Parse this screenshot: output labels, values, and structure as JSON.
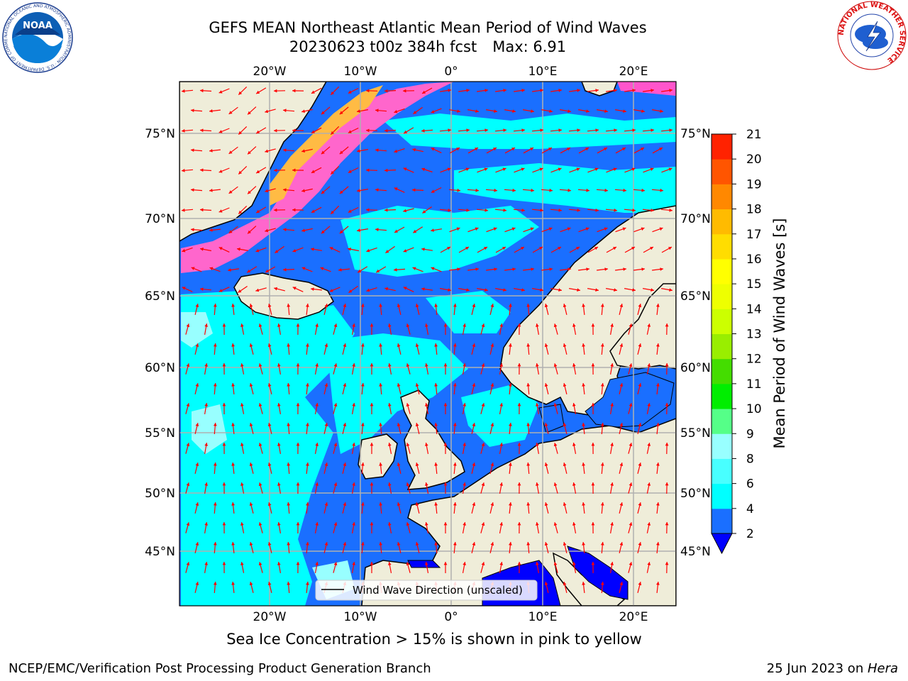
{
  "header": {
    "title_line1": "GEFS MEAN Northeast Atlantic Mean Period of Wind Waves",
    "title_line2_date": "20230623 t00z 384h fcst",
    "title_line2_max": "Max: 6.91"
  },
  "logos": {
    "noaa_text": "NOAA",
    "noaa_ring": "NATIONAL OCEANIC AND ATMOSPHERIC ADMINISTRATION · U.S. DEPARTMENT OF COMMERCE",
    "nws_ring": "NATIONAL WEATHER SERVICE"
  },
  "map": {
    "lon_ticks": [
      "20°W",
      "10°W",
      "0°",
      "10°E",
      "20°E"
    ],
    "lat_ticks": [
      "75°N",
      "70°N",
      "65°N",
      "60°N",
      "55°N",
      "50°N",
      "45°N"
    ],
    "legend_label": "Wind Wave Direction (unscaled)",
    "caption": "Sea Ice Concentration > 15% is shown in pink to yellow"
  },
  "colorbar": {
    "label": "Mean Period of Wind Waves [s]",
    "ticks": [
      "2",
      "4",
      "6",
      "8",
      "9",
      "10",
      "11",
      "12",
      "13",
      "14",
      "15",
      "16",
      "17",
      "18",
      "19",
      "20",
      "21"
    ],
    "colors": [
      "#1a6fff",
      "#00ffff",
      "#48ffff",
      "#98ffff",
      "#55ff88",
      "#00ee00",
      "#44dd00",
      "#99ee00",
      "#ccff00",
      "#eeff00",
      "#ffff00",
      "#ffdd00",
      "#ffbb00",
      "#ff8800",
      "#ff5500",
      "#ff2200"
    ],
    "extend_color": "#0000ff"
  },
  "footer": {
    "left": "NCEP/EMC/Verification Post Processing Product Generation Branch",
    "right_date": "25 Jun 2023 on ",
    "right_host": "Hera"
  }
}
